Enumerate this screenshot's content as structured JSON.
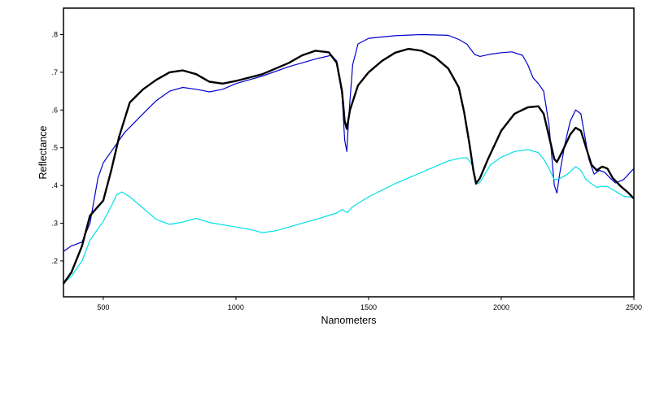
{
  "chart_data": {
    "type": "line",
    "xlabel": "Nanometers",
    "ylabel": "Reflectance",
    "xlim": [
      350,
      2500
    ],
    "ylim": [
      0.105,
      0.87
    ],
    "xticks": [
      {
        "value": 500,
        "label": "500"
      },
      {
        "value": 1000,
        "label": "1000"
      },
      {
        "value": 1500,
        "label": "1500"
      },
      {
        "value": 2000,
        "label": "2000"
      },
      {
        "value": 2500,
        "label": "2500"
      }
    ],
    "yticks": [
      {
        "value": 0.2,
        "label": ".2"
      },
      {
        "value": 0.3,
        "label": ".3"
      },
      {
        "value": 0.4,
        "label": ".4"
      },
      {
        "value": 0.5,
        "label": ".5"
      },
      {
        "value": 0.6,
        "label": ".6"
      },
      {
        "value": 0.7,
        "label": ".7"
      },
      {
        "value": 0.8,
        "label": ".8"
      }
    ],
    "grid": false,
    "series": [
      {
        "color": "#0000cc",
        "width": 1.2,
        "points": [
          [
            350,
            0.225
          ],
          [
            380,
            0.24
          ],
          [
            420,
            0.25
          ],
          [
            450,
            0.3
          ],
          [
            480,
            0.42
          ],
          [
            500,
            0.46
          ],
          [
            530,
            0.49
          ],
          [
            580,
            0.54
          ],
          [
            650,
            0.59
          ],
          [
            700,
            0.625
          ],
          [
            750,
            0.65
          ],
          [
            800,
            0.66
          ],
          [
            850,
            0.655
          ],
          [
            900,
            0.648
          ],
          [
            950,
            0.655
          ],
          [
            1000,
            0.67
          ],
          [
            1100,
            0.69
          ],
          [
            1200,
            0.715
          ],
          [
            1300,
            0.735
          ],
          [
            1360,
            0.745
          ],
          [
            1380,
            0.73
          ],
          [
            1400,
            0.64
          ],
          [
            1410,
            0.52
          ],
          [
            1418,
            0.49
          ],
          [
            1425,
            0.58
          ],
          [
            1440,
            0.72
          ],
          [
            1460,
            0.775
          ],
          [
            1500,
            0.79
          ],
          [
            1600,
            0.797
          ],
          [
            1700,
            0.8
          ],
          [
            1800,
            0.798
          ],
          [
            1840,
            0.787
          ],
          [
            1870,
            0.775
          ],
          [
            1900,
            0.747
          ],
          [
            1920,
            0.742
          ],
          [
            1960,
            0.748
          ],
          [
            2000,
            0.752
          ],
          [
            2040,
            0.754
          ],
          [
            2080,
            0.745
          ],
          [
            2100,
            0.72
          ],
          [
            2120,
            0.685
          ],
          [
            2140,
            0.67
          ],
          [
            2160,
            0.65
          ],
          [
            2180,
            0.56
          ],
          [
            2200,
            0.4
          ],
          [
            2210,
            0.38
          ],
          [
            2220,
            0.43
          ],
          [
            2240,
            0.51
          ],
          [
            2260,
            0.57
          ],
          [
            2280,
            0.6
          ],
          [
            2300,
            0.59
          ],
          [
            2310,
            0.55
          ],
          [
            2330,
            0.47
          ],
          [
            2350,
            0.43
          ],
          [
            2370,
            0.44
          ],
          [
            2390,
            0.435
          ],
          [
            2410,
            0.42
          ],
          [
            2430,
            0.407
          ],
          [
            2460,
            0.415
          ],
          [
            2480,
            0.43
          ],
          [
            2500,
            0.445
          ]
        ]
      },
      {
        "color": "#00e0e8",
        "width": 1.2,
        "points": [
          [
            350,
            0.14
          ],
          [
            380,
            0.16
          ],
          [
            420,
            0.2
          ],
          [
            450,
            0.255
          ],
          [
            500,
            0.305
          ],
          [
            530,
            0.345
          ],
          [
            550,
            0.375
          ],
          [
            570,
            0.383
          ],
          [
            600,
            0.37
          ],
          [
            650,
            0.34
          ],
          [
            700,
            0.31
          ],
          [
            750,
            0.297
          ],
          [
            800,
            0.303
          ],
          [
            850,
            0.313
          ],
          [
            900,
            0.302
          ],
          [
            1000,
            0.29
          ],
          [
            1050,
            0.284
          ],
          [
            1100,
            0.275
          ],
          [
            1150,
            0.28
          ],
          [
            1200,
            0.29
          ],
          [
            1300,
            0.31
          ],
          [
            1380,
            0.327
          ],
          [
            1400,
            0.336
          ],
          [
            1420,
            0.328
          ],
          [
            1440,
            0.344
          ],
          [
            1500,
            0.37
          ],
          [
            1600,
            0.405
          ],
          [
            1700,
            0.435
          ],
          [
            1800,
            0.465
          ],
          [
            1850,
            0.473
          ],
          [
            1870,
            0.474
          ],
          [
            1890,
            0.455
          ],
          [
            1905,
            0.405
          ],
          [
            1915,
            0.405
          ],
          [
            1930,
            0.42
          ],
          [
            1960,
            0.455
          ],
          [
            2000,
            0.475
          ],
          [
            2050,
            0.49
          ],
          [
            2100,
            0.495
          ],
          [
            2140,
            0.487
          ],
          [
            2160,
            0.47
          ],
          [
            2180,
            0.445
          ],
          [
            2200,
            0.415
          ],
          [
            2220,
            0.418
          ],
          [
            2250,
            0.43
          ],
          [
            2280,
            0.45
          ],
          [
            2300,
            0.44
          ],
          [
            2320,
            0.415
          ],
          [
            2340,
            0.405
          ],
          [
            2360,
            0.395
          ],
          [
            2380,
            0.398
          ],
          [
            2400,
            0.397
          ],
          [
            2430,
            0.385
          ],
          [
            2460,
            0.372
          ],
          [
            2500,
            0.368
          ]
        ]
      },
      {
        "color": "#000000",
        "width": 2.4,
        "points": [
          [
            350,
            0.14
          ],
          [
            380,
            0.17
          ],
          [
            420,
            0.24
          ],
          [
            450,
            0.32
          ],
          [
            500,
            0.36
          ],
          [
            530,
            0.44
          ],
          [
            560,
            0.53
          ],
          [
            600,
            0.62
          ],
          [
            650,
            0.655
          ],
          [
            700,
            0.68
          ],
          [
            750,
            0.7
          ],
          [
            800,
            0.705
          ],
          [
            850,
            0.695
          ],
          [
            900,
            0.675
          ],
          [
            950,
            0.67
          ],
          [
            1000,
            0.677
          ],
          [
            1100,
            0.695
          ],
          [
            1200,
            0.725
          ],
          [
            1250,
            0.745
          ],
          [
            1300,
            0.757
          ],
          [
            1350,
            0.753
          ],
          [
            1380,
            0.725
          ],
          [
            1400,
            0.65
          ],
          [
            1410,
            0.57
          ],
          [
            1418,
            0.55
          ],
          [
            1430,
            0.6
          ],
          [
            1460,
            0.665
          ],
          [
            1500,
            0.7
          ],
          [
            1550,
            0.73
          ],
          [
            1600,
            0.752
          ],
          [
            1650,
            0.762
          ],
          [
            1700,
            0.757
          ],
          [
            1750,
            0.74
          ],
          [
            1800,
            0.71
          ],
          [
            1840,
            0.66
          ],
          [
            1860,
            0.595
          ],
          [
            1880,
            0.51
          ],
          [
            1895,
            0.44
          ],
          [
            1905,
            0.405
          ],
          [
            1920,
            0.42
          ],
          [
            1950,
            0.47
          ],
          [
            2000,
            0.545
          ],
          [
            2050,
            0.59
          ],
          [
            2100,
            0.607
          ],
          [
            2140,
            0.61
          ],
          [
            2160,
            0.59
          ],
          [
            2180,
            0.53
          ],
          [
            2200,
            0.47
          ],
          [
            2210,
            0.462
          ],
          [
            2230,
            0.49
          ],
          [
            2260,
            0.535
          ],
          [
            2280,
            0.553
          ],
          [
            2300,
            0.545
          ],
          [
            2320,
            0.5
          ],
          [
            2340,
            0.455
          ],
          [
            2360,
            0.44
          ],
          [
            2380,
            0.45
          ],
          [
            2400,
            0.445
          ],
          [
            2420,
            0.42
          ],
          [
            2450,
            0.398
          ],
          [
            2480,
            0.38
          ],
          [
            2500,
            0.365
          ]
        ]
      }
    ]
  }
}
